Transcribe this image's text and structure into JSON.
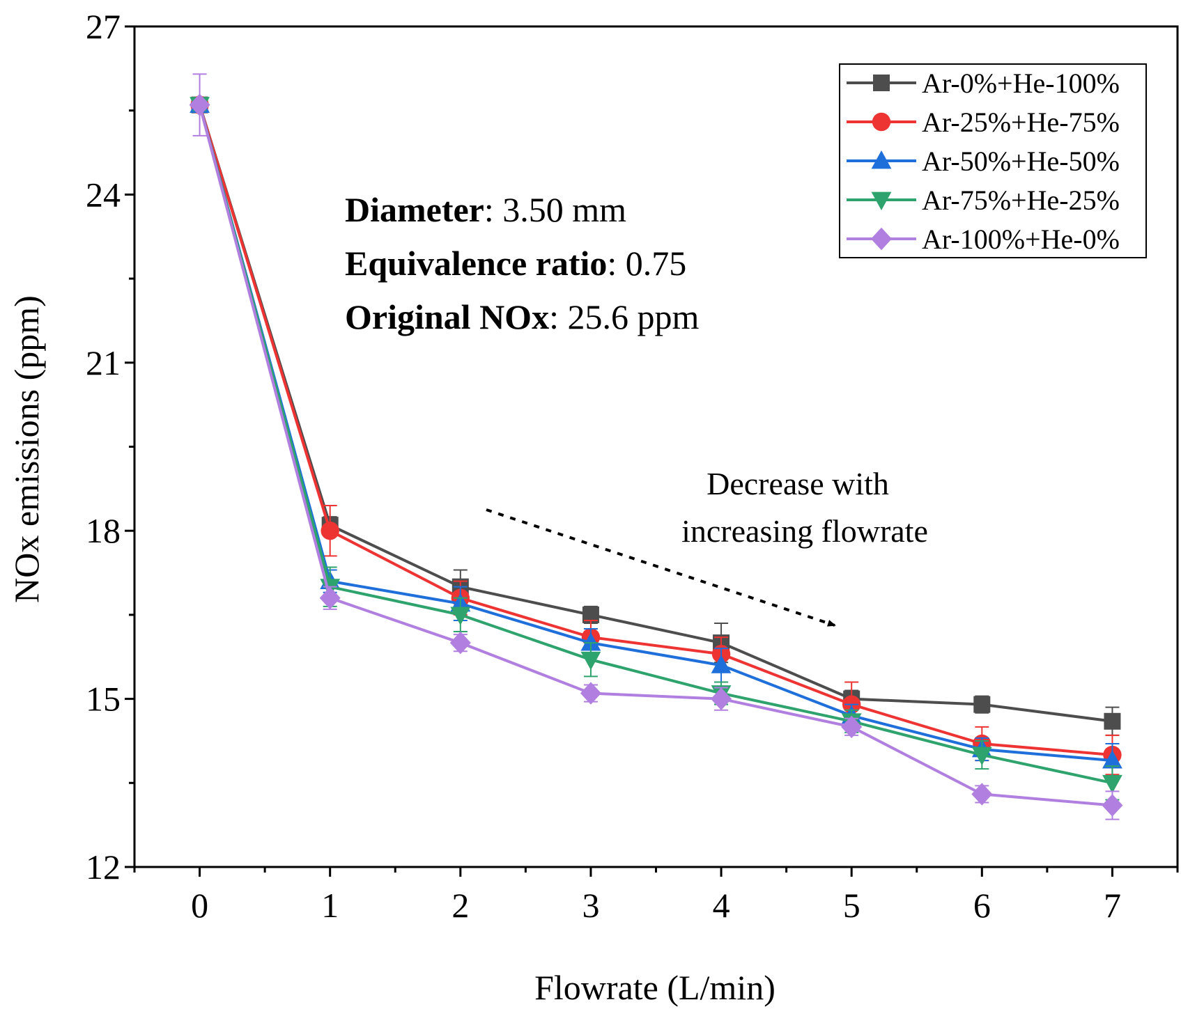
{
  "chart_data": {
    "type": "line",
    "xlabel": "Flowrate (L/min)",
    "ylabel": "NOx emissions (ppm)",
    "xlim": [
      -0.5,
      7.5
    ],
    "ylim": [
      12,
      27
    ],
    "x": [
      0,
      1,
      2,
      3,
      4,
      5,
      6,
      7
    ],
    "xticks": [
      "0",
      "1",
      "2",
      "3",
      "4",
      "5",
      "6",
      "7"
    ],
    "yticks": [
      "12",
      "15",
      "18",
      "21",
      "24",
      "27"
    ],
    "ytick_values": [
      12,
      15,
      18,
      21,
      24,
      27
    ],
    "grid": false,
    "legend_position": "top-right",
    "series": [
      {
        "name": "Ar-0%+He-100%",
        "color": "#4d4d4d",
        "marker": "square",
        "values": [
          25.6,
          18.1,
          17.0,
          16.5,
          16.0,
          15.0,
          14.9,
          14.6
        ],
        "errors": [
          0.1,
          0.15,
          0.3,
          0.15,
          0.35,
          0.15,
          0.15,
          0.25
        ]
      },
      {
        "name": "Ar-25%+He-75%",
        "color": "#ee3333",
        "marker": "circle",
        "values": [
          25.6,
          18.0,
          16.8,
          16.1,
          15.8,
          14.9,
          14.2,
          14.0
        ],
        "errors": [
          0.1,
          0.45,
          0.3,
          0.3,
          0.3,
          0.4,
          0.3,
          0.35
        ]
      },
      {
        "name": "Ar-50%+He-50%",
        "color": "#1f6fdb",
        "marker": "triangle-up",
        "values": [
          25.6,
          17.1,
          16.7,
          16.0,
          15.6,
          14.7,
          14.1,
          13.9
        ],
        "errors": [
          0.1,
          0.2,
          0.3,
          0.25,
          0.3,
          0.2,
          0.2,
          0.3
        ]
      },
      {
        "name": "Ar-75%+He-25%",
        "color": "#2ea36e",
        "marker": "triangle-down",
        "values": [
          25.6,
          17.0,
          16.5,
          15.7,
          15.1,
          14.6,
          14.0,
          13.5
        ],
        "errors": [
          0.1,
          0.35,
          0.3,
          0.3,
          0.2,
          0.2,
          0.25,
          0.3
        ]
      },
      {
        "name": "Ar-100%+He-0%",
        "color": "#b07fe0",
        "marker": "diamond",
        "values": [
          25.6,
          16.8,
          16.0,
          15.1,
          15.0,
          14.5,
          13.3,
          13.1
        ],
        "errors": [
          0.55,
          0.2,
          0.15,
          0.15,
          0.2,
          0.15,
          0.15,
          0.25
        ]
      }
    ],
    "annotations": {
      "info": [
        {
          "bold": "Diameter",
          "rest": ": 3.50 mm"
        },
        {
          "bold": "Equivalence ratio",
          "rest": ": 0.75"
        },
        {
          "bold": "Original NOx",
          "rest": ": 25.6 ppm"
        }
      ],
      "trend_line1": "Decrease with",
      "trend_line2": "increasing flowrate"
    }
  }
}
